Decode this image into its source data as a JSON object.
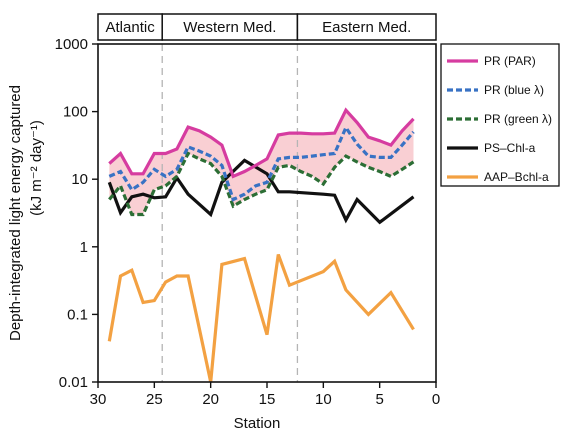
{
  "chart_data": {
    "type": "line",
    "title": "",
    "xlabel": "Station",
    "ylabel_line1": "Depth-integrated light energy captured",
    "ylabel_line2": "(kJ m⁻² day⁻¹)",
    "xlim": [
      30,
      0
    ],
    "ylim": [
      0.01,
      1000
    ],
    "yscale": "log",
    "xticks": [
      30,
      25,
      20,
      15,
      10,
      5,
      0
    ],
    "xtick_labels": [
      "30",
      "25",
      "20",
      "15",
      "10",
      "5",
      "0"
    ],
    "yticks": [
      0.01,
      0.1,
      1,
      10,
      100,
      1000
    ],
    "ytick_labels": [
      "0.01",
      "0.1",
      "1",
      "10",
      "100",
      "1000"
    ],
    "regions": [
      {
        "label": "Atlantic",
        "x_start": 30,
        "x_end": 24.3
      },
      {
        "label": "Western Med.",
        "x_start": 24.3,
        "x_end": 12.3
      },
      {
        "label": "Eastern  Med.",
        "x_start": 12.3,
        "x_end": 0
      }
    ],
    "dividers": [
      24.3,
      12.3
    ],
    "fill_between": {
      "upper": "PR (PAR)",
      "lower": "PR (green λ)",
      "color": "#f9cfd3"
    },
    "legend_position": "right",
    "series": [
      {
        "name": "PR (PAR)",
        "color": "#d63ca0",
        "dash": "solid",
        "points": [
          [
            29,
            17
          ],
          [
            28,
            24
          ],
          [
            27,
            12
          ],
          [
            26,
            12
          ],
          [
            25,
            24
          ],
          [
            24,
            24
          ],
          [
            23,
            28
          ],
          [
            22,
            59
          ],
          [
            21,
            52
          ],
          [
            20,
            42
          ],
          [
            19,
            32
          ],
          [
            18,
            11
          ],
          [
            17,
            13
          ],
          [
            16,
            16
          ],
          [
            15,
            20
          ],
          [
            14,
            45
          ],
          [
            13,
            48
          ],
          [
            12,
            48
          ],
          [
            11,
            47
          ],
          [
            10,
            47
          ],
          [
            9,
            48
          ],
          [
            8,
            105
          ],
          [
            7,
            69
          ],
          [
            6,
            42
          ],
          [
            5,
            37
          ],
          [
            4,
            32
          ],
          [
            3,
            52
          ],
          [
            2,
            78
          ]
        ]
      },
      {
        "name": "PR (blue λ)",
        "color": "#3872c4",
        "dash": "dashed",
        "points": [
          [
            29,
            11
          ],
          [
            28,
            13
          ],
          [
            27,
            7
          ],
          [
            26,
            9
          ],
          [
            25,
            14
          ],
          [
            24,
            11
          ],
          [
            23,
            14
          ],
          [
            22,
            30
          ],
          [
            21,
            26
          ],
          [
            20,
            22
          ],
          [
            19,
            16
          ],
          [
            18,
            5
          ],
          [
            17,
            6
          ],
          [
            16,
            8
          ],
          [
            15,
            9
          ],
          [
            14,
            20
          ],
          [
            13,
            21
          ],
          [
            12,
            21
          ],
          [
            11,
            22
          ],
          [
            10,
            23
          ],
          [
            9,
            24
          ],
          [
            8,
            58
          ],
          [
            7,
            33
          ],
          [
            6,
            22
          ],
          [
            5,
            21
          ],
          [
            4,
            21
          ],
          [
            3,
            32
          ],
          [
            2,
            50
          ]
        ]
      },
      {
        "name": "PR (green λ)",
        "color": "#2c6e35",
        "dash": "dashed",
        "points": [
          [
            29,
            5
          ],
          [
            28,
            8
          ],
          [
            27,
            3
          ],
          [
            26,
            3
          ],
          [
            25,
            7
          ],
          [
            24,
            8
          ],
          [
            23,
            11
          ],
          [
            22,
            24
          ],
          [
            21,
            20
          ],
          [
            20,
            17
          ],
          [
            19,
            11
          ],
          [
            18,
            4
          ],
          [
            17,
            5
          ],
          [
            16,
            6
          ],
          [
            15,
            7
          ],
          [
            14,
            15
          ],
          [
            13,
            16
          ],
          [
            12,
            13
          ],
          [
            11,
            11
          ],
          [
            10,
            8.5
          ],
          [
            9,
            15
          ],
          [
            8,
            22
          ],
          [
            7,
            18
          ],
          [
            6,
            15
          ],
          [
            5,
            13
          ],
          [
            4,
            11
          ],
          [
            3,
            14
          ],
          [
            2,
            18
          ]
        ]
      },
      {
        "name": "PS–Chl-a",
        "color": "#111111",
        "dash": "solid",
        "points": [
          [
            29,
            9
          ],
          [
            28,
            3.2
          ],
          [
            27,
            5.5
          ],
          [
            26,
            6
          ],
          [
            25,
            5.3
          ],
          [
            24,
            5.5
          ],
          [
            23,
            10.5
          ],
          [
            22,
            6
          ],
          [
            20,
            3
          ],
          [
            19,
            9
          ],
          [
            17,
            19
          ],
          [
            15,
            12
          ],
          [
            14,
            6.5
          ],
          [
            13,
            6.5
          ],
          [
            10,
            6
          ],
          [
            9,
            5.8
          ],
          [
            8,
            2.5
          ],
          [
            7,
            5
          ],
          [
            5,
            2.3
          ],
          [
            2,
            5.5
          ]
        ]
      },
      {
        "name": "AAP–Bchl-a",
        "color": "#f3a142",
        "dash": "solid",
        "points": [
          [
            29,
            0.04
          ],
          [
            28,
            0.37
          ],
          [
            27,
            0.45
          ],
          [
            26,
            0.15
          ],
          [
            25,
            0.16
          ],
          [
            24,
            0.3
          ],
          [
            23,
            0.37
          ],
          [
            22,
            0.37
          ],
          [
            20,
            0.01
          ],
          [
            19,
            0.55
          ],
          [
            17,
            0.67
          ],
          [
            15,
            0.05
          ],
          [
            14,
            0.77
          ],
          [
            13,
            0.27
          ],
          [
            10,
            0.43
          ],
          [
            9,
            0.61
          ],
          [
            8,
            0.23
          ],
          [
            6,
            0.1
          ],
          [
            4,
            0.21
          ],
          [
            2,
            0.06
          ]
        ]
      }
    ]
  }
}
